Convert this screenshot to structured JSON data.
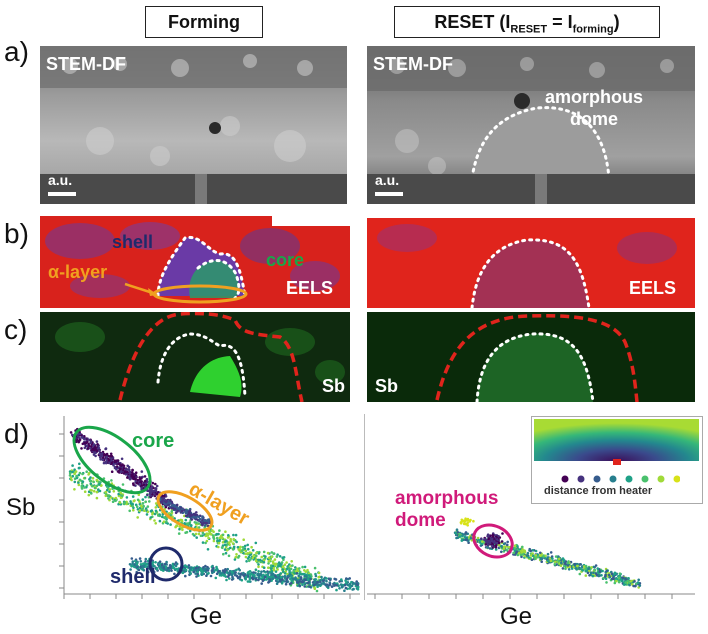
{
  "headers": {
    "forming": "Forming",
    "reset_main": "RESET (I",
    "reset_sub1": "RESET",
    "reset_eq": " = I",
    "reset_sub2": "forming",
    "reset_close": ")"
  },
  "row_labels": [
    "a)",
    "b)",
    "c)",
    "d)"
  ],
  "stem": {
    "label": "STEM-DF",
    "scale": "a.u.",
    "amorphous_dome": [
      "amorphous",
      "dome"
    ]
  },
  "eels": {
    "label": "EELS",
    "shell": "shell",
    "core": "core",
    "alpha_layer": "α-layer"
  },
  "sb_map": {
    "label": "Sb"
  },
  "scatter": {
    "ylabel": "Sb",
    "xlabel_left": "Ge",
    "xlabel_right": "Ge",
    "core": "core",
    "alpha_layer": "α-layer",
    "shell": "shell",
    "amorphous_dome": [
      "amorphous",
      "dome"
    ],
    "colorbar_caption": "distance from heater"
  },
  "colors": {
    "core": "#1aa64a",
    "alpha_layer": "#f0a020",
    "shell": "#1f2a6b",
    "amorphous_dome": "#d01a7a",
    "red_map": "#e0241c",
    "green_map": "#1fbd32"
  }
}
